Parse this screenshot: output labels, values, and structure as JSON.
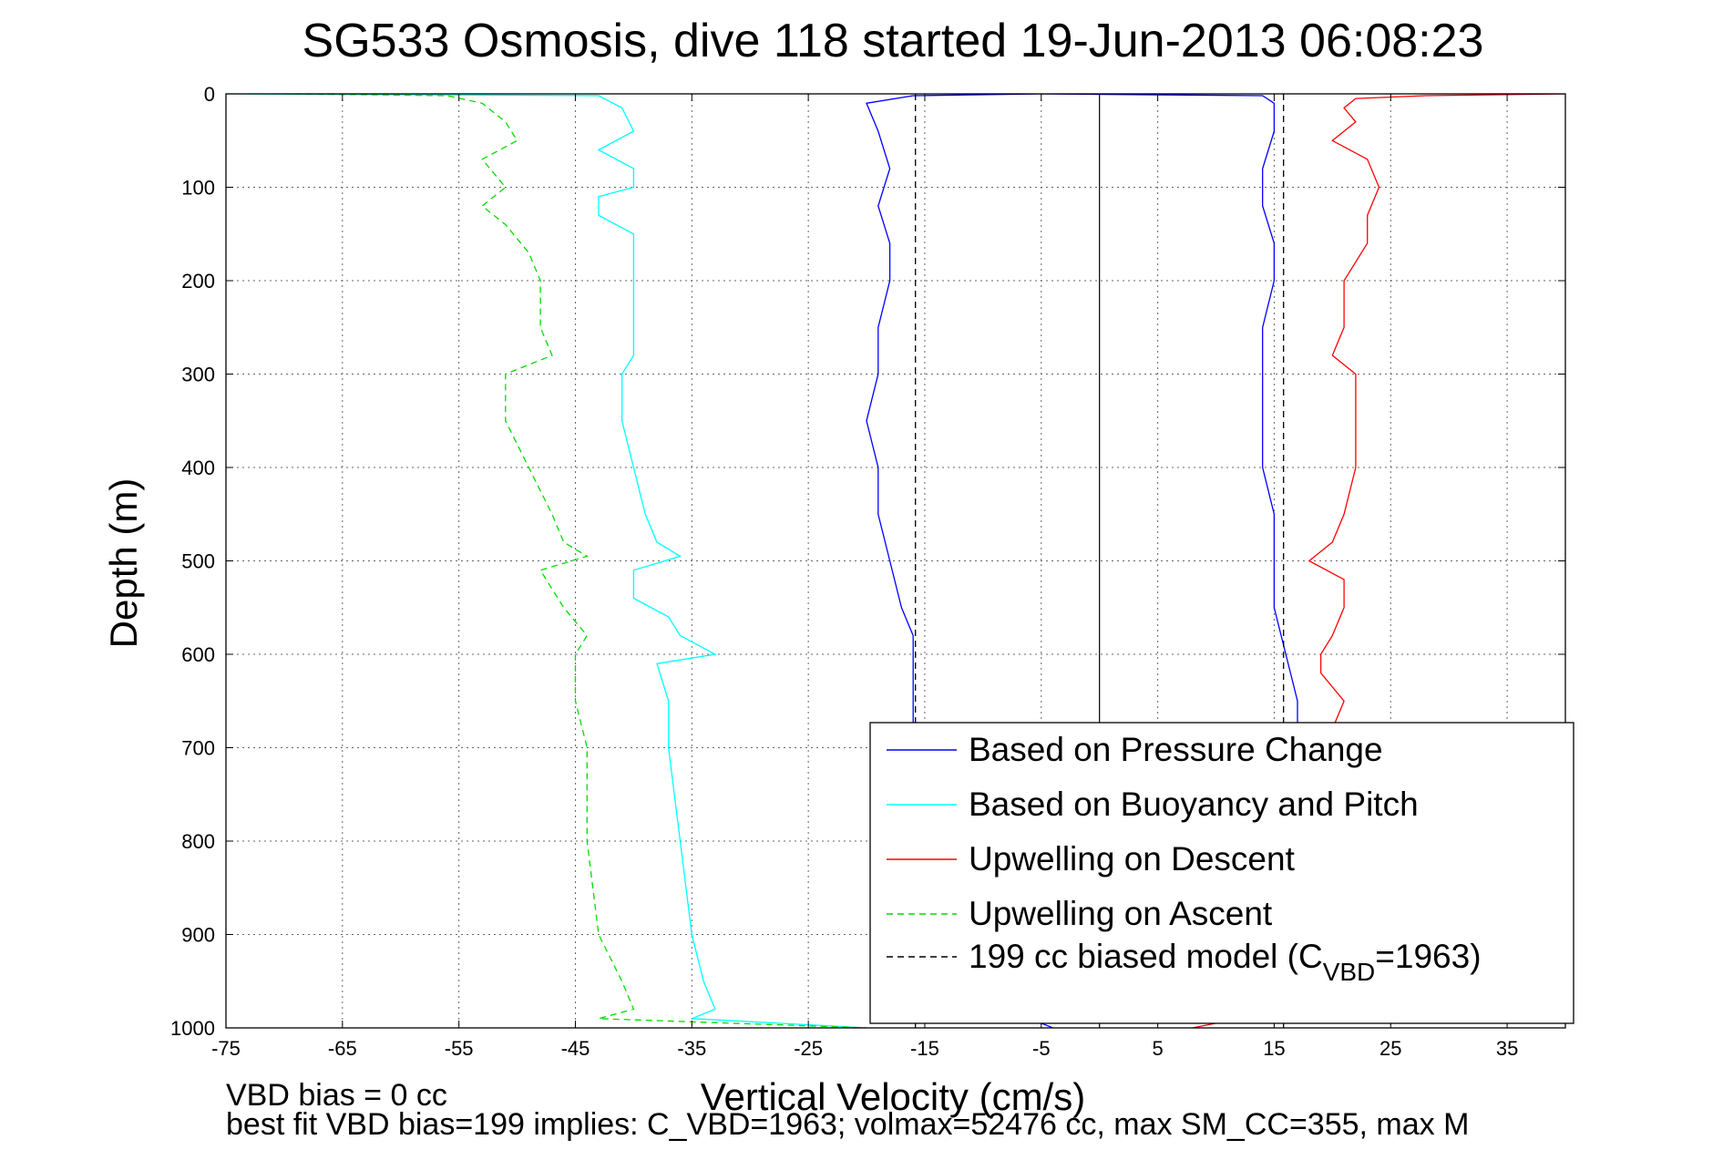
{
  "chart_data": {
    "type": "line",
    "title": "SG533 Osmosis, dive 118 started 19-Jun-2013 06:08:23",
    "xlabel": "Vertical Velocity (cm/s)",
    "ylabel": "Depth (m)",
    "xlim": [
      -75,
      40
    ],
    "ylim": [
      0,
      1000
    ],
    "y_reversed": true,
    "grid": true,
    "x_ticks": [
      -75,
      -65,
      -55,
      -45,
      -35,
      -25,
      -15,
      -5,
      5,
      15,
      25,
      35
    ],
    "y_ticks": [
      0,
      100,
      200,
      300,
      400,
      500,
      600,
      700,
      800,
      900,
      1000
    ],
    "legend_position": "bottom-right",
    "reference_line": {
      "x": 0,
      "color": "#000000"
    },
    "series": [
      {
        "name": "Based on Pressure Change",
        "color": "#0000ff",
        "style": "solid",
        "segments": [
          {
            "depth": [
              0,
              2,
              10,
              40,
              80,
              120,
              160,
              200,
              250,
              300,
              350,
              400,
              450,
              500,
              550,
              580,
              620,
              650,
              680
            ],
            "values": [
              -5,
              -16,
              -20,
              -19,
              -18,
              -19,
              -18,
              -18,
              -19,
              -19,
              -20,
              -19,
              -19,
              -18,
              -17,
              -16,
              -16,
              -16,
              -16
            ]
          },
          {
            "depth": [
              0,
              2,
              10,
              40,
              80,
              120,
              160,
              200,
              250,
              300,
              350,
              400,
              450,
              500,
              550,
              600,
              650,
              680
            ],
            "values": [
              -5,
              14,
              15,
              15,
              14,
              14,
              15,
              15,
              14,
              14,
              14,
              14,
              15,
              15,
              15,
              16,
              17,
              17
            ]
          },
          {
            "depth": [
              985,
              990,
              995,
              1000
            ],
            "values": [
              14,
              0,
              -5,
              -4
            ]
          }
        ]
      },
      {
        "name": "Based on Buoyancy and Pitch",
        "color": "#00ffff",
        "style": "solid",
        "segments": [
          {
            "depth": [
              0,
              2,
              15,
              40,
              60,
              80,
              100,
              110,
              130,
              150,
              170,
              200,
              250,
              280,
              300,
              350,
              400,
              450,
              480,
              495,
              510,
              540,
              560,
              580,
              600,
              610,
              650,
              700,
              800,
              900,
              950,
              980,
              990,
              1000
            ],
            "values": [
              -75,
              -43,
              -41,
              -40,
              -43,
              -40,
              -40,
              -43,
              -43,
              -40,
              -40,
              -40,
              -40,
              -40,
              -41,
              -41,
              -40,
              -39,
              -38,
              -36,
              -40,
              -40,
              -37,
              -36,
              -33,
              -38,
              -37,
              -37,
              -36,
              -35,
              -34,
              -33,
              -35,
              -20
            ]
          }
        ]
      },
      {
        "name": "Upwelling on Ascent",
        "color": "#00dd00",
        "style": "dashed",
        "segments": [
          {
            "depth": [
              0,
              2,
              10,
              30,
              50,
              70,
              100,
              120,
              140,
              170,
              200,
              250,
              280,
              300,
              350,
              400,
              450,
              480,
              495,
              510,
              550,
              580,
              600,
              650,
              700,
              800,
              900,
              950,
              980,
              990,
              1000
            ],
            "values": [
              -70,
              -56,
              -53,
              -51,
              -50,
              -53,
              -51,
              -53,
              -51,
              -49,
              -48,
              -48,
              -47,
              -51,
              -51,
              -49,
              -47,
              -46,
              -44,
              -48,
              -46,
              -44,
              -45,
              -45,
              -44,
              -44,
              -43,
              -41,
              -40,
              -43,
              -20
            ]
          }
        ]
      },
      {
        "name": "Upwelling on Descent",
        "color": "#ff0000",
        "style": "solid",
        "segments": [
          {
            "depth": [
              0,
              2,
              5,
              15,
              30,
              50,
              70,
              100,
              130,
              160,
              200,
              250,
              280,
              300,
              350,
              400,
              450,
              480,
              500,
              520,
              550,
              580,
              600,
              620,
              650,
              680
            ],
            "values": [
              40,
              28,
              22,
              21,
              22,
              20,
              23,
              24,
              23,
              23,
              21,
              21,
              20,
              22,
              22,
              22,
              21,
              20,
              18,
              21,
              21,
              20,
              19,
              19,
              21,
              20
            ]
          },
          {
            "depth": [
              990,
              995,
              1000
            ],
            "values": [
              20,
              10,
              8
            ]
          }
        ]
      },
      {
        "name": "199 cc biased model (CVBD=1963)",
        "color": "#000000",
        "style": "dashed",
        "segments": [
          {
            "depth": [
              0,
              1000
            ],
            "values": [
              -15.8,
              -15.8
            ]
          },
          {
            "depth": [
              0,
              1000
            ],
            "values": [
              15.8,
              15.8
            ]
          }
        ]
      }
    ]
  },
  "legend": {
    "items": [
      {
        "label": "Based on Pressure Change",
        "color": "#0000ff",
        "style": "solid"
      },
      {
        "label": "Based on Buoyancy and Pitch",
        "color": "#00ffff",
        "style": "solid"
      },
      {
        "label": "Upwelling on Descent",
        "color": "#ff0000",
        "style": "solid"
      },
      {
        "label": "Upwelling on Ascent",
        "color": "#00dd00",
        "style": "dashed"
      },
      {
        "label_main": "199 cc biased model (C",
        "label_sub": "VBD",
        "label_end": "=1963)",
        "color": "#000000",
        "style": "dashed"
      }
    ]
  },
  "footer": {
    "line1": "VBD bias = 0 cc",
    "line2": "best fit VBD bias=199 implies: C_VBD=1963; volmax=52476 cc, max SM_CC=355, max M"
  }
}
